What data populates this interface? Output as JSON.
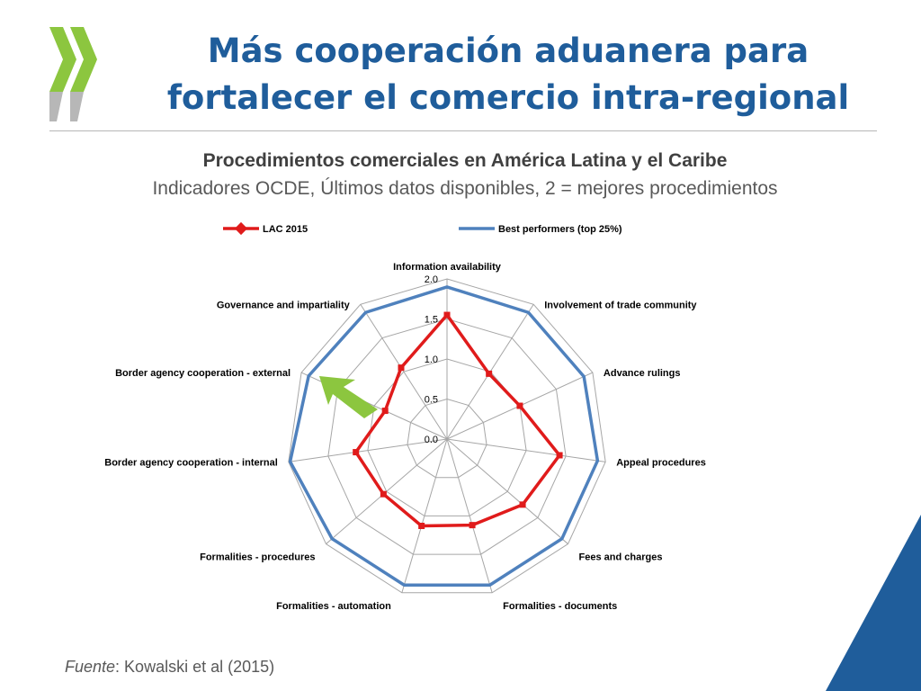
{
  "header": {
    "title_line1": "Más cooperación aduanera para",
    "title_line2": "fortalecer el comercio intra-regional",
    "subtitle": "Procedimientos comerciales en América Latina y el Caribe",
    "description": "Indicadores OCDE,  Últimos datos disponibles, 2 = mejores procedimientos"
  },
  "footer": {
    "source_prefix": "Fuente",
    "source_text": ": Kowalski et al (2015)"
  },
  "colors": {
    "title": "#1f5d9b",
    "lac": "#e01b1b",
    "best": "#4f81bd",
    "highlight_arrow": "#8cc63f",
    "logo": "#8cc63f",
    "corner": "#1f5d9b"
  },
  "chart_data": {
    "type": "radar",
    "title": "",
    "axes": [
      "Information availability",
      "Involvement of trade community",
      "Advance rulings",
      "Appeal procedures",
      "Fees and charges",
      "Formalities - documents",
      "Formalities - automation",
      "Formalities - procedures",
      "Border agency cooperation - internal",
      "Border agency cooperation - external",
      "Governance and impartiality"
    ],
    "rlim": [
      0,
      2
    ],
    "ticks": [
      "0.0",
      "0.5",
      "1.0",
      "1.5",
      "2.0"
    ],
    "tick_values": [
      0,
      0.5,
      1,
      1.5,
      2
    ],
    "grid": true,
    "legend": "top",
    "series": [
      {
        "name": "LAC 2015",
        "color": "#e01b1b",
        "marker": "square",
        "values": [
          1.55,
          0.97,
          1.0,
          1.42,
          1.25,
          1.12,
          1.13,
          1.05,
          1.15,
          0.85,
          1.06
        ]
      },
      {
        "name": "Best performers (top 25%)",
        "color": "#4f81bd",
        "marker": "none",
        "values": [
          1.9,
          1.88,
          1.88,
          1.9,
          1.9,
          1.9,
          1.9,
          1.9,
          1.98,
          1.9,
          1.88
        ]
      }
    ]
  }
}
